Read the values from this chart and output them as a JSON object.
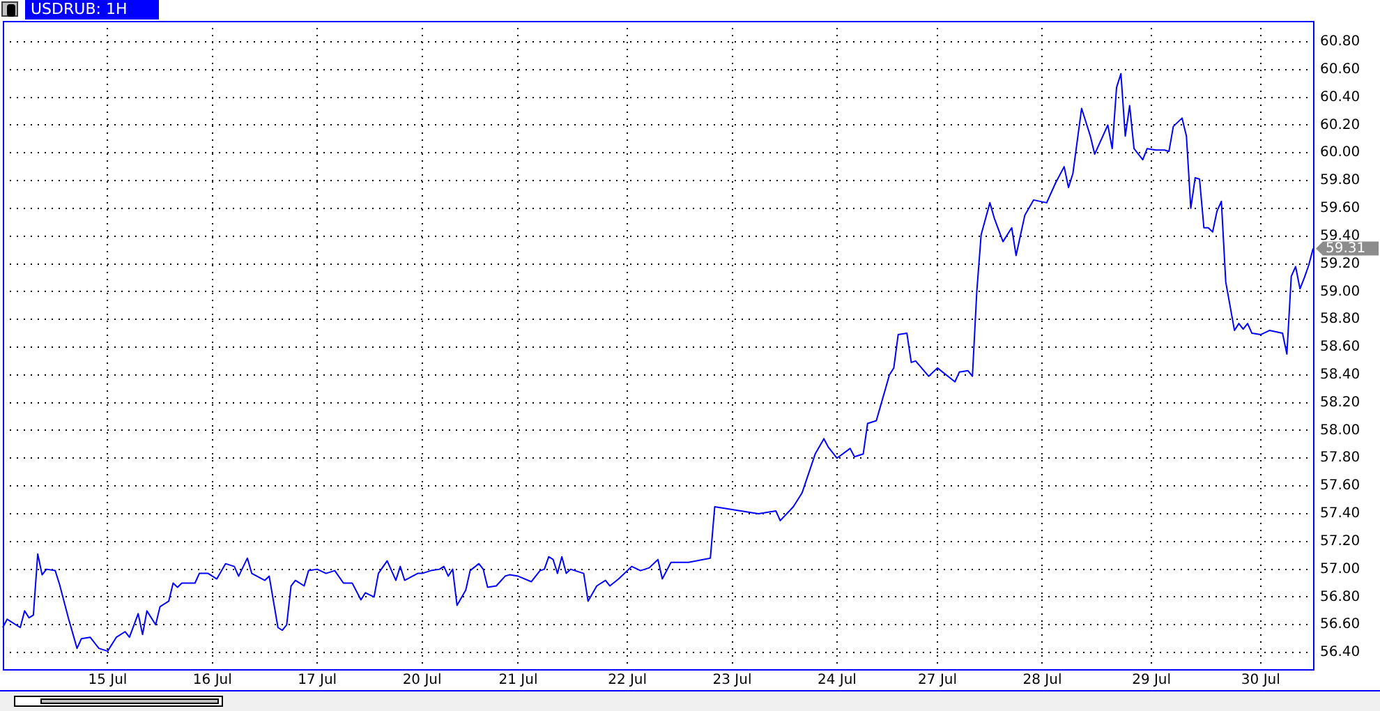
{
  "chart_data": {
    "type": "line",
    "title": "USDRUB: 1H",
    "categories": [
      null,
      null,
      null,
      null,
      null,
      null,
      null,
      null,
      null,
      null,
      null,
      null,
      null,
      null,
      null,
      null,
      null,
      null,
      null,
      null,
      null,
      null,
      null,
      null,
      "15 Jul",
      null,
      null,
      null,
      null,
      null,
      null,
      null,
      null,
      null,
      null,
      null,
      null,
      null,
      null,
      null,
      null,
      null,
      null,
      null,
      null,
      null,
      null,
      null,
      "16 Jul",
      null,
      null,
      null,
      null,
      null,
      null,
      null,
      null,
      null,
      null,
      null,
      null,
      null,
      null,
      null,
      null,
      null,
      null,
      null,
      null,
      null,
      null,
      null,
      "17 Jul",
      null,
      null,
      null,
      null,
      null,
      null,
      null,
      null,
      null,
      null,
      null,
      null,
      null,
      null,
      null,
      null,
      null,
      null,
      null,
      null,
      null,
      null,
      null,
      "20 Jul",
      null,
      null,
      null,
      null,
      null,
      null,
      null,
      null,
      null,
      null,
      null,
      null,
      null,
      null,
      null,
      null,
      null,
      null,
      null,
      null,
      null,
      "21 Jul",
      null,
      null,
      null,
      null,
      null,
      null,
      null,
      null,
      null,
      null,
      null,
      null,
      null,
      null,
      null,
      null,
      null,
      null,
      null,
      null,
      null,
      null,
      null,
      null,
      "22 Jul",
      null,
      null,
      null,
      null,
      null,
      null,
      null,
      null,
      null,
      null,
      null,
      null,
      null,
      null,
      null,
      null,
      null,
      null,
      null,
      null,
      null,
      null,
      null,
      "23 Jul",
      null,
      null,
      null,
      null,
      null,
      null,
      null,
      null,
      null,
      null,
      null,
      null,
      null,
      null,
      null,
      null,
      null,
      null,
      null,
      null,
      null,
      null,
      null,
      "24 Jul",
      null,
      null,
      null,
      null,
      null,
      null,
      null,
      null,
      null,
      null,
      null,
      null,
      null,
      null,
      null,
      null,
      null,
      null,
      null,
      null,
      null,
      null,
      "27 Jul",
      null,
      null,
      null,
      null,
      null,
      null,
      null,
      null,
      null,
      null,
      null,
      null,
      null,
      null,
      null,
      null,
      null,
      null,
      null,
      null,
      null,
      null,
      null,
      "28 Jul",
      null,
      null,
      null,
      null,
      null,
      null,
      null,
      null,
      null,
      null,
      null,
      null,
      null,
      null,
      null,
      null,
      null,
      null,
      null,
      null,
      null,
      null,
      null,
      null,
      "29 Jul",
      null,
      null,
      null,
      null,
      null,
      null,
      null,
      null,
      null,
      null,
      null,
      null,
      null,
      null,
      null,
      null,
      null,
      null,
      null,
      null,
      null,
      null,
      null,
      null,
      "30 Jul",
      null,
      null,
      null,
      null,
      null,
      null,
      null,
      null,
      null,
      null,
      null,
      null
    ],
    "series": [
      {
        "color": "#0000ff",
        "values": [
          56.58,
          56.64,
          null,
          null,
          56.58,
          56.7,
          56.65,
          56.67,
          57.11,
          56.96,
          57,
          null,
          56.99,
          56.89,
          null,
          56.65,
          null,
          56.43,
          56.5,
          null,
          56.51,
          null,
          56.43,
          null,
          56.41,
          null,
          56.51,
          null,
          56.55,
          56.51,
          null,
          56.68,
          56.53,
          56.7,
          null,
          56.6,
          56.73,
          null,
          56.77,
          56.9,
          56.87,
          56.9,
          null,
          null,
          56.9,
          56.97,
          null,
          56.97,
          null,
          56.93,
          null,
          57.04,
          null,
          57.02,
          56.95,
          null,
          57.08,
          56.97,
          null,
          null,
          56.92,
          56.95,
          null,
          56.58,
          56.56,
          56.6,
          56.88,
          56.92,
          null,
          56.88,
          56.99,
          null,
          57,
          null,
          56.97,
          null,
          56.99,
          null,
          56.9,
          null,
          56.9,
          null,
          56.78,
          56.83,
          null,
          56.8,
          56.97,
          null,
          57.06,
          null,
          56.92,
          57.02,
          56.92,
          null,
          null,
          56.97,
          56.97,
          null,
          56.99,
          null,
          57,
          57.02,
          56.95,
          57,
          56.74,
          null,
          56.85,
          56.99,
          null,
          57.04,
          57,
          56.87,
          null,
          56.88,
          null,
          56.95,
          56.96,
          null,
          56.95,
          null,
          null,
          56.91,
          null,
          56.99,
          57,
          57.09,
          57.07,
          56.97,
          57.09,
          56.97,
          57,
          null,
          null,
          56.97,
          56.77,
          null,
          56.88,
          null,
          56.92,
          56.88,
          null,
          56.93,
          null,
          null,
          57.02,
          null,
          56.99,
          null,
          57.01,
          null,
          57.07,
          56.93,
          null,
          57.05,
          null,
          null,
          null,
          57.05,
          null,
          null,
          null,
          null,
          57.08,
          57.45,
          null,
          null,
          null,
          null,
          null,
          57.42,
          null,
          null,
          null,
          57.4,
          null,
          null,
          null,
          57.42,
          57.35,
          null,
          null,
          57.45,
          null,
          57.55,
          null,
          null,
          57.83,
          null,
          57.94,
          57.88,
          null,
          57.8,
          null,
          null,
          57.87,
          57.81,
          null,
          57.83,
          58.05,
          null,
          58.07,
          58.18,
          null,
          58.4,
          58.45,
          58.69,
          null,
          58.7,
          58.49,
          58.5,
          null,
          null,
          58.39,
          null,
          58.45,
          null,
          null,
          null,
          58.35,
          58.42,
          null,
          58.43,
          58.39,
          59,
          59.41,
          null,
          59.64,
          59.53,
          null,
          59.36,
          null,
          59.46,
          59.26,
          null,
          59.55,
          null,
          59.66,
          null,
          null,
          59.64,
          null,
          59.78,
          null,
          59.9,
          59.75,
          59.85,
          null,
          60.32,
          null,
          60.12,
          59.99,
          null,
          null,
          60.2,
          60.03,
          60.47,
          60.57,
          60.12,
          60.34,
          60.03,
          null,
          59.95,
          60.03,
          null,
          60.02,
          null,
          60.02,
          60.01,
          60.19,
          null,
          60.25,
          60.12,
          59.6,
          59.82,
          59.81,
          59.46,
          59.46,
          59.43,
          59.58,
          59.65,
          59.07,
          null,
          58.72,
          58.77,
          58.73,
          58.77,
          58.7,
          null,
          58.69,
          null,
          58.72,
          null,
          null,
          58.7,
          58.55,
          59.11,
          59.18,
          59.02,
          59.1,
          59.19,
          59.31
        ]
      }
    ],
    "ylim": [
      56.28,
      60.95
    ],
    "yticks": [
      {
        "value": 56.4,
        "label": "56.40"
      },
      {
        "value": 56.6,
        "label": "56.60"
      },
      {
        "value": 56.8,
        "label": "56.80"
      },
      {
        "value": 57,
        "label": "57.00"
      },
      {
        "value": 57.2,
        "label": "57.20"
      },
      {
        "value": 57.4,
        "label": "57.40"
      },
      {
        "value": 57.6,
        "label": "57.60"
      },
      {
        "value": 57.8,
        "label": "57.80"
      },
      {
        "value": 58,
        "label": "58.00"
      },
      {
        "value": 58.2,
        "label": "58.20"
      },
      {
        "value": 58.4,
        "label": "58.40"
      },
      {
        "value": 58.6,
        "label": "58.60"
      },
      {
        "value": 58.8,
        "label": "58.80"
      },
      {
        "value": 59,
        "label": "59.00"
      },
      {
        "value": 59.2,
        "label": "59.20"
      },
      {
        "value": 59.4,
        "label": "59.40"
      },
      {
        "value": 59.6,
        "label": "59.60"
      },
      {
        "value": 59.8,
        "label": "59.80"
      },
      {
        "value": 60,
        "label": "60.00"
      },
      {
        "value": 60.2,
        "label": "60.20"
      },
      {
        "value": 60.4,
        "label": "60.40"
      },
      {
        "value": 60.6,
        "label": "60.60"
      },
      {
        "value": 60.8,
        "label": "60.80"
      }
    ],
    "annotations": [
      "59.31"
    ],
    "grid": true,
    "legend": false,
    "marker": "none",
    "line_style": "solid"
  }
}
